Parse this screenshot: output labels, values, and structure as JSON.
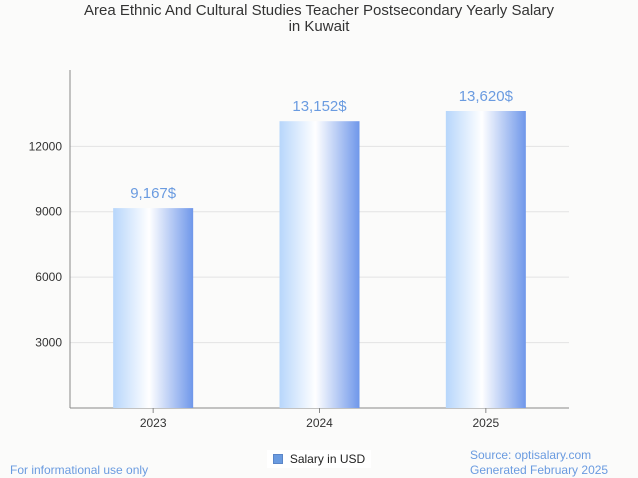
{
  "chart_data": {
    "type": "bar",
    "title_lines": [
      "Area Ethnic And Cultural Studies Teacher Postsecondary Yearly Salary",
      "in Kuwait"
    ],
    "categories": [
      "2023",
      "2024",
      "2025"
    ],
    "series": [
      {
        "name": "Salary in USD",
        "values": [
          9167,
          13152,
          13620
        ]
      }
    ],
    "data_labels": [
      "9,167$",
      "13,152$",
      "13,620$"
    ],
    "yticks": [
      "3000",
      "6000",
      "9000",
      "12000"
    ],
    "ylim": [
      0,
      15500
    ],
    "grid": true,
    "legend_position": "bottom"
  },
  "colors": {
    "bar_light": "#ffffff",
    "bar_mid": "#b7d6fb",
    "bar_dark": "#6f97ea",
    "accent": "#6a9be0"
  },
  "footer": {
    "note": "For informational use only",
    "source": "Source: optisalary.com",
    "generated": "Generated February 2025"
  }
}
